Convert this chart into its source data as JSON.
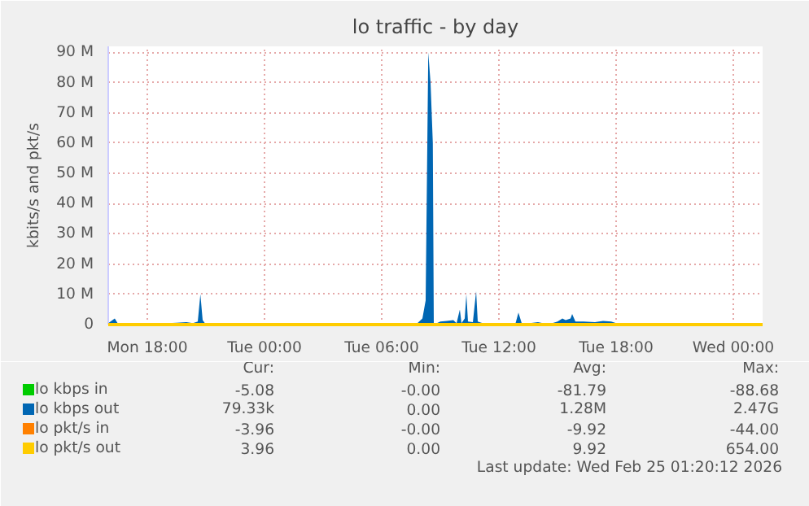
{
  "chart_data": {
    "type": "line",
    "title": "lo traffic - by day",
    "ylabel": "kbits/s and pkt/s",
    "xlim": [
      "2026-02-23T16:00",
      "2026-02-25T01:30"
    ],
    "xticks": [
      {
        "value": "2026-02-23T18:00",
        "label": "Mon 18:00"
      },
      {
        "value": "2026-02-24T00:00",
        "label": "Tue 00:00"
      },
      {
        "value": "2026-02-24T06:00",
        "label": "Tue 06:00"
      },
      {
        "value": "2026-02-24T12:00",
        "label": "Tue 12:00"
      },
      {
        "value": "2026-02-24T18:00",
        "label": "Tue 18:00"
      },
      {
        "value": "2026-02-25T00:00",
        "label": "Wed 00:00"
      }
    ],
    "ylim": [
      0,
      92
    ],
    "yticks": [
      {
        "value": 0,
        "label": "0"
      },
      {
        "value": 10,
        "label": "10 M"
      },
      {
        "value": 20,
        "label": "20 M"
      },
      {
        "value": 30,
        "label": "30 M"
      },
      {
        "value": 40,
        "label": "40 M"
      },
      {
        "value": 50,
        "label": "50 M"
      },
      {
        "value": 60,
        "label": "60 M"
      },
      {
        "value": 70,
        "label": "70 M"
      },
      {
        "value": 80,
        "label": "80 M"
      },
      {
        "value": 90,
        "label": "90 M"
      }
    ],
    "grid": true,
    "legend": "bottom left",
    "series": [
      {
        "name": "lo kbps in",
        "color": "#00cc00"
      },
      {
        "name": "lo kbps out",
        "color": "#0066b3",
        "type": "area",
        "x": [
          "2026-02-23T16:00",
          "2026-02-23T16:20",
          "2026-02-23T16:30",
          "2026-02-23T16:45",
          "2026-02-23T17:00",
          "2026-02-23T18:00",
          "2026-02-23T18:50",
          "2026-02-23T19:30",
          "2026-02-23T20:00",
          "2026-02-23T20:20",
          "2026-02-23T20:35",
          "2026-02-23T20:43",
          "2026-02-23T20:50",
          "2026-02-23T21:00",
          "2026-02-23T21:30",
          "2026-02-23T21:40",
          "2026-02-24T04:50",
          "2026-02-24T05:00",
          "2026-02-24T05:10",
          "2026-02-24T07:45",
          "2026-02-24T07:55",
          "2026-02-24T08:05",
          "2026-02-24T08:15",
          "2026-02-24T08:23",
          "2026-02-24T08:30",
          "2026-02-24T08:37",
          "2026-02-24T08:40",
          "2026-02-24T09:00",
          "2026-02-24T09:20",
          "2026-02-24T09:40",
          "2026-02-24T09:50",
          "2026-02-24T10:00",
          "2026-02-24T10:05",
          "2026-02-24T10:15",
          "2026-02-24T10:20",
          "2026-02-24T10:25",
          "2026-02-24T10:40",
          "2026-02-24T10:50",
          "2026-02-24T10:55",
          "2026-02-24T11:10",
          "2026-02-24T11:30",
          "2026-02-24T12:50",
          "2026-02-24T13:00",
          "2026-02-24T13:10",
          "2026-02-24T13:35",
          "2026-02-24T14:00",
          "2026-02-24T14:15",
          "2026-02-24T14:30",
          "2026-02-24T15:00",
          "2026-02-24T15:15",
          "2026-02-24T15:25",
          "2026-02-24T15:40",
          "2026-02-24T15:45",
          "2026-02-24T15:55",
          "2026-02-24T16:20",
          "2026-02-24T16:55",
          "2026-02-24T17:20",
          "2026-02-24T17:45",
          "2026-02-24T18:00",
          "2026-02-24T18:35",
          "2026-02-24T19:00",
          "2026-02-24T19:25",
          "2026-02-24T19:40"
        ],
        "values": [
          0.5,
          2,
          0.3,
          0.5,
          0,
          0.3,
          0.4,
          0.6,
          0.8,
          0.5,
          1,
          10,
          1.5,
          0,
          0.5,
          0,
          0,
          0.5,
          0,
          0,
          1,
          2,
          8,
          90,
          80,
          60,
          0,
          1,
          1.2,
          1.5,
          0.5,
          5,
          0.5,
          2,
          10,
          1,
          0.8,
          11,
          1,
          0.5,
          0,
          0,
          4,
          0.5,
          0.5,
          0.8,
          0.5,
          0,
          1,
          2,
          1.5,
          2,
          3.5,
          1,
          1,
          0.8,
          1.2,
          1,
          0.5,
          0,
          0.5,
          0.5,
          0
        ]
      },
      {
        "name": "lo pkt/s in",
        "color": "#ff8000"
      },
      {
        "name": "lo pkt/s out",
        "color": "#ffcc00",
        "x": [
          "2026-02-23T16:00",
          "2026-02-25T01:30"
        ],
        "values": [
          0,
          0
        ]
      }
    ],
    "annotations": [
      "Cur:",
      "Min:",
      "Avg:",
      "Max:",
      "-5.08",
      "-0.00",
      "-81.79",
      "-88.68",
      "79.33k",
      "0.00",
      "1.28M",
      "2.47G",
      "-3.96",
      "-0.00",
      "-9.92",
      "-44.00",
      "3.96",
      "0.00",
      "9.92",
      "654.00",
      "Last update: Wed Feb 25 01:20:12 2026"
    ]
  }
}
